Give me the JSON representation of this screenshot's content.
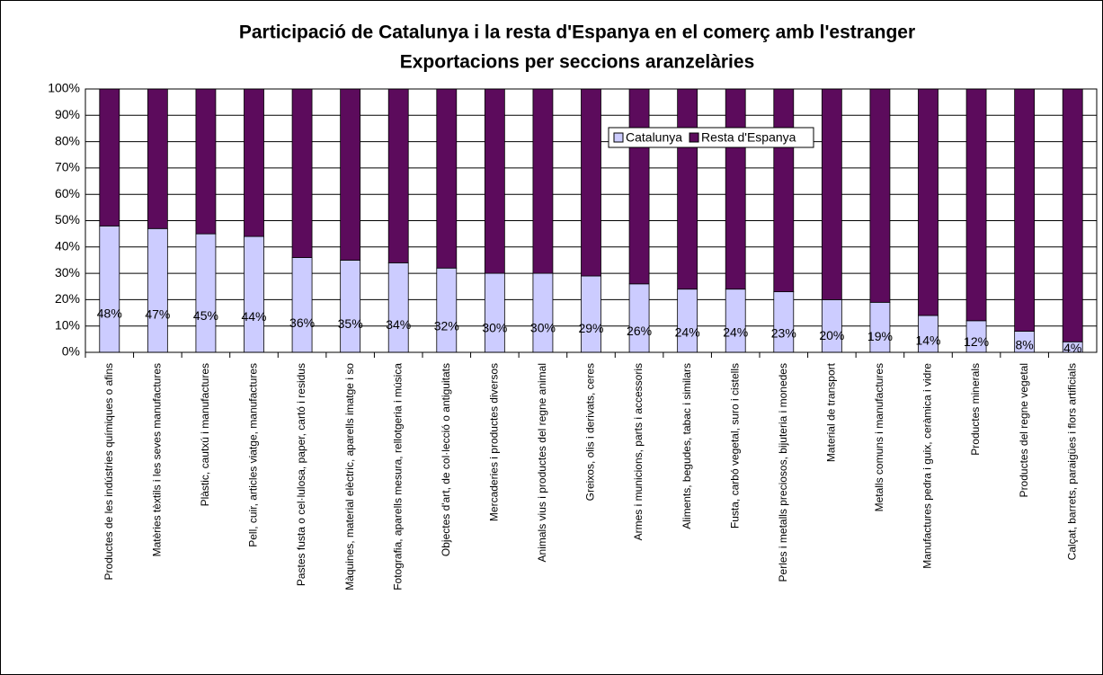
{
  "chart_data": {
    "type": "stacked_bar",
    "title": "Participació de Catalunya i la resta d'Espanya en el comerç amb l'estranger",
    "subtitle": "Exportacions per seccions aranzelàries",
    "categories": [
      "Productes de les indústries químiques o afins",
      "Matèries tèxtils i les seves manufactures",
      "Plàstic, cautxú i manufactures",
      "Pell, cuir, articles viatge, manufactures",
      "Pastes fusta o cel·lulosa, paper, cartó i residus",
      "Màquines, material elèctric, aparells imatge i so",
      "Fotografia, aparells mesura, rellotgeria i música",
      "Objectes d'art, de col·lecció o antiguitats",
      "Mercaderies i productes diversos",
      "Animals vius i productes del regne animal",
      "Greixos, olis i derivats, ceres",
      "Armes i municions, parts i accessoris",
      "Aliments, begudes, tabac i similars",
      "Fusta, carbó vegetal, suro i cistells",
      "Perles i metalls preciosos, bijuteria i monedes",
      "Material de transport",
      "Metalls comuns i manufactures",
      "Manufactures pedra i guix, ceràmica i vidre",
      "Productes minerals",
      "Productes del regne vegetal",
      "Calçat, barrets, paraigües i flors artificials"
    ],
    "series": [
      {
        "name": "Catalunya",
        "color": "#ccccff",
        "values": [
          48,
          47,
          45,
          44,
          36,
          35,
          34,
          32,
          30,
          30,
          29,
          26,
          24,
          24,
          23,
          20,
          19,
          14,
          12,
          8,
          4
        ],
        "value_labels": [
          "48%",
          "47%",
          "45%",
          "44%",
          "36%",
          "35%",
          "34%",
          "32%",
          "30%",
          "30%",
          "29%",
          "26%",
          "24%",
          "24%",
          "23%",
          "20%",
          "19%",
          "14%",
          "12%",
          "8%",
          "4%"
        ]
      },
      {
        "name": "Resta d'Espanya",
        "color": "#5c0b5c",
        "values": [
          52,
          53,
          55,
          56,
          64,
          65,
          66,
          68,
          70,
          70,
          71,
          74,
          76,
          76,
          77,
          80,
          81,
          86,
          88,
          92,
          96
        ]
      }
    ],
    "ylim": [
      0,
      100
    ],
    "yticks": [
      {
        "value": 0,
        "label": "0%"
      },
      {
        "value": 10,
        "label": "10%"
      },
      {
        "value": 20,
        "label": "20%"
      },
      {
        "value": 30,
        "label": "30%"
      },
      {
        "value": 40,
        "label": "40%"
      },
      {
        "value": 50,
        "label": "50%"
      },
      {
        "value": 60,
        "label": "60%"
      },
      {
        "value": 70,
        "label": "70%"
      },
      {
        "value": 80,
        "label": "80%"
      },
      {
        "value": 90,
        "label": "90%"
      },
      {
        "value": 100,
        "label": "100%"
      }
    ],
    "grid": true,
    "legend": "top-right"
  }
}
